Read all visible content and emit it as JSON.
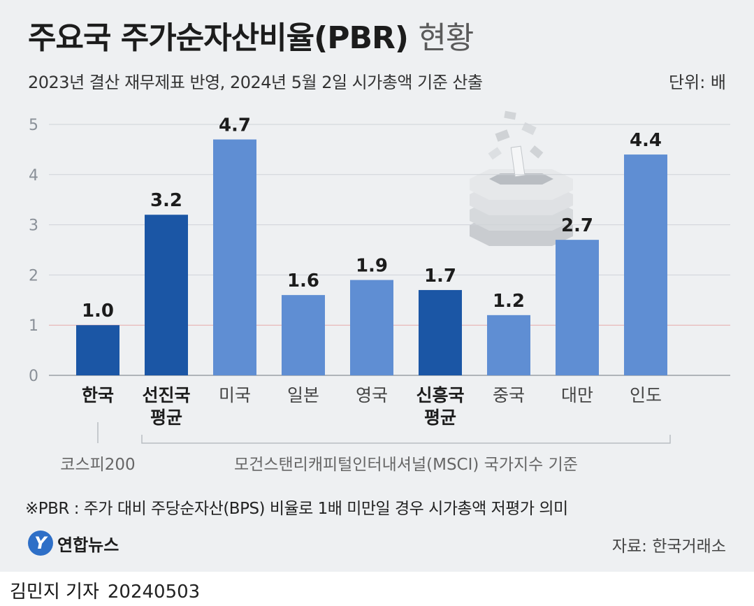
{
  "header": {
    "title": "주요국 주가순자산비율(PBR)",
    "title_suffix": "현황",
    "subtitle": "2023년 결산 재무제표 반영, 2024년 5월 2일 시가총액 기준 산출",
    "unit": "단위: 배"
  },
  "chart_data": {
    "type": "bar",
    "ylim": [
      0,
      5
    ],
    "yticks": [
      "0",
      "1",
      "2",
      "3",
      "4",
      "5"
    ],
    "grid": true,
    "categories": [
      {
        "lines": [
          "한국"
        ],
        "bold": true
      },
      {
        "lines": [
          "선진국",
          "평균"
        ],
        "bold": true
      },
      {
        "lines": [
          "미국"
        ],
        "bold": false
      },
      {
        "lines": [
          "일본"
        ],
        "bold": false
      },
      {
        "lines": [
          "영국"
        ],
        "bold": false
      },
      {
        "lines": [
          "신흥국",
          "평균"
        ],
        "bold": true
      },
      {
        "lines": [
          "중국"
        ],
        "bold": false
      },
      {
        "lines": [
          "대만"
        ],
        "bold": false
      },
      {
        "lines": [
          "인도"
        ],
        "bold": false
      }
    ],
    "values": [
      1.0,
      3.2,
      4.7,
      1.6,
      1.9,
      1.7,
      1.2,
      2.7,
      4.4
    ],
    "value_labels": [
      "1.0",
      "3.2",
      "4.7",
      "1.6",
      "1.9",
      "1.7",
      "1.2",
      "2.7",
      "4.4"
    ],
    "highlight": [
      true,
      true,
      false,
      false,
      false,
      true,
      false,
      false,
      false
    ],
    "colors": {
      "dark": "#1b56a5",
      "light": "#5f8ed3",
      "reference_line": "#e6a9a9",
      "grid": "#cfd3d8"
    },
    "groups": [
      {
        "label": "코스피200",
        "from": 0,
        "to": 0
      },
      {
        "label": "모건스탠리캐피털인터내셔널(MSCI) 국가지수 기준",
        "from": 1,
        "to": 8
      }
    ]
  },
  "footnote": "※PBR : 주가 대비 주당순자산(BPS) 비율로 1배 미만일 경우 시가총액 저평가 의미",
  "logo": {
    "mark": "Y",
    "name": "연합뉴스"
  },
  "source": "자료: 한국거래소",
  "byline": {
    "author": "김민지 기자",
    "date": "20240503"
  }
}
